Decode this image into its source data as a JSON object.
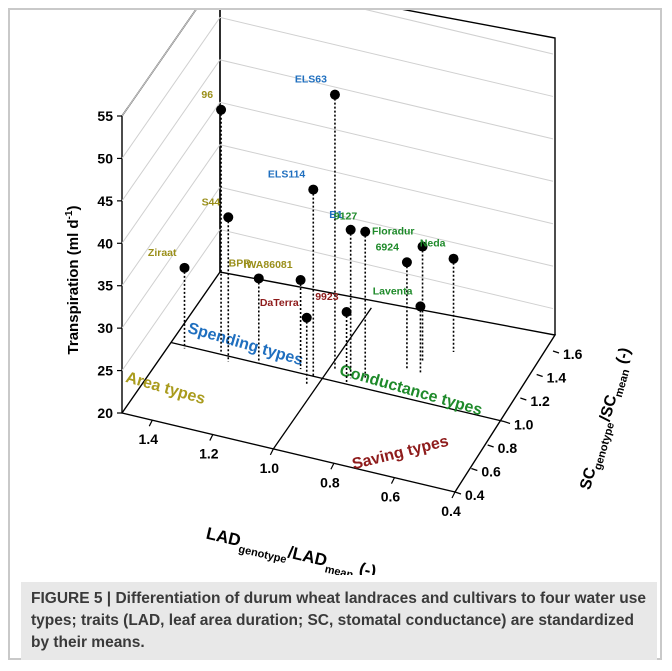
{
  "caption": {
    "label": "FIGURE 5 |",
    "text": "Differentiation of durum wheat landraces and cultivars to four water use types; traits (LAD, leaf area duration; SC, stomatal conductance) are standardized by their means."
  },
  "chart_data": {
    "type": "scatter3d",
    "axes": {
      "z": {
        "label_main": "Transpiration (ml d",
        "label_sup": "-1",
        "label_end": ")",
        "ticks": [
          20,
          25,
          30,
          35,
          40,
          45,
          50,
          55
        ],
        "range": [
          20,
          55
        ]
      },
      "x": {
        "label_main": "LAD",
        "label_sub1": "genotype",
        "label_mid": "/LAD",
        "label_sub2": "mean",
        "label_end": " (-)",
        "ticks": [
          1.4,
          1.2,
          1.0,
          0.8,
          0.6,
          0.4
        ],
        "tick_labels": [
          "1.4",
          "1.2",
          "1.0",
          "0.8",
          "0.6",
          "0.4"
        ],
        "range": [
          1.5,
          0.4
        ]
      },
      "y": {
        "label_main": "SC",
        "label_sub1": "genotype",
        "label_mid": "/SC",
        "label_sub2": "mean",
        "label_end": " (-)",
        "ticks": [
          0.4,
          0.6,
          0.8,
          1.0,
          1.2,
          1.4,
          1.6
        ],
        "tick_labels": [
          "0.4",
          "0.6",
          "0.8",
          "1.0",
          "1.2",
          "1.4",
          "1.6"
        ],
        "range": [
          0.4,
          1.6
        ]
      }
    },
    "quadrants": [
      {
        "name": "Spending types",
        "color": "#1f6fbf"
      },
      {
        "name": "Conductance types",
        "color": "#1e8a2a"
      },
      {
        "name": "Area types",
        "color": "#a99b1c"
      },
      {
        "name": "Saving types",
        "color": "#8e1b1b"
      }
    ],
    "colors": {
      "olive": "#9a8f1a",
      "blue": "#1f6fbf",
      "green": "#1e8a2a",
      "red": "#8e1b1b"
    },
    "points": [
      {
        "label": "ELS63",
        "color": "blue",
        "x": 0.98,
        "y": 1.08,
        "z": 52.5
      },
      {
        "label": "96",
        "color": "olive",
        "x": 1.34,
        "y": 1.02,
        "z": 48.5
      },
      {
        "label": "ELS114",
        "color": "blue",
        "x": 1.03,
        "y": 1.0,
        "z": 42.0
      },
      {
        "label": "S44",
        "color": "olive",
        "x": 1.3,
        "y": 0.96,
        "z": 37.0
      },
      {
        "label": "B1",
        "color": "blue",
        "x": 0.92,
        "y": 1.05,
        "z": 37.5
      },
      {
        "label": "9127",
        "color": "green",
        "x": 0.88,
        "y": 1.08,
        "z": 37.2
      },
      {
        "label": "IWA86081",
        "color": "olive",
        "x": 1.08,
        "y": 1.03,
        "z": 30.5
      },
      {
        "label": "Floradur",
        "color": "green",
        "x": 0.75,
        "y": 1.3,
        "z": 33.5
      },
      {
        "label": "6924",
        "color": "green",
        "x": 0.78,
        "y": 1.22,
        "z": 32.5
      },
      {
        "label": "Neda",
        "color": "green",
        "x": 0.68,
        "y": 1.42,
        "z": 31.0
      },
      {
        "label": "BPR",
        "color": "olive",
        "x": 1.21,
        "y": 1.0,
        "z": 30.0
      },
      {
        "label": "Ziraat",
        "color": "olive",
        "x": 1.45,
        "y": 0.98,
        "z": 29.5
      },
      {
        "label": "DaTerra",
        "color": "red",
        "x": 1.03,
        "y": 0.92,
        "z": 28.0
      },
      {
        "label": "9923",
        "color": "red",
        "x": 0.92,
        "y": 1.0,
        "z": 28.5
      },
      {
        "label": "Laventa",
        "color": "green",
        "x": 0.73,
        "y": 1.2,
        "z": 28.0
      }
    ]
  }
}
